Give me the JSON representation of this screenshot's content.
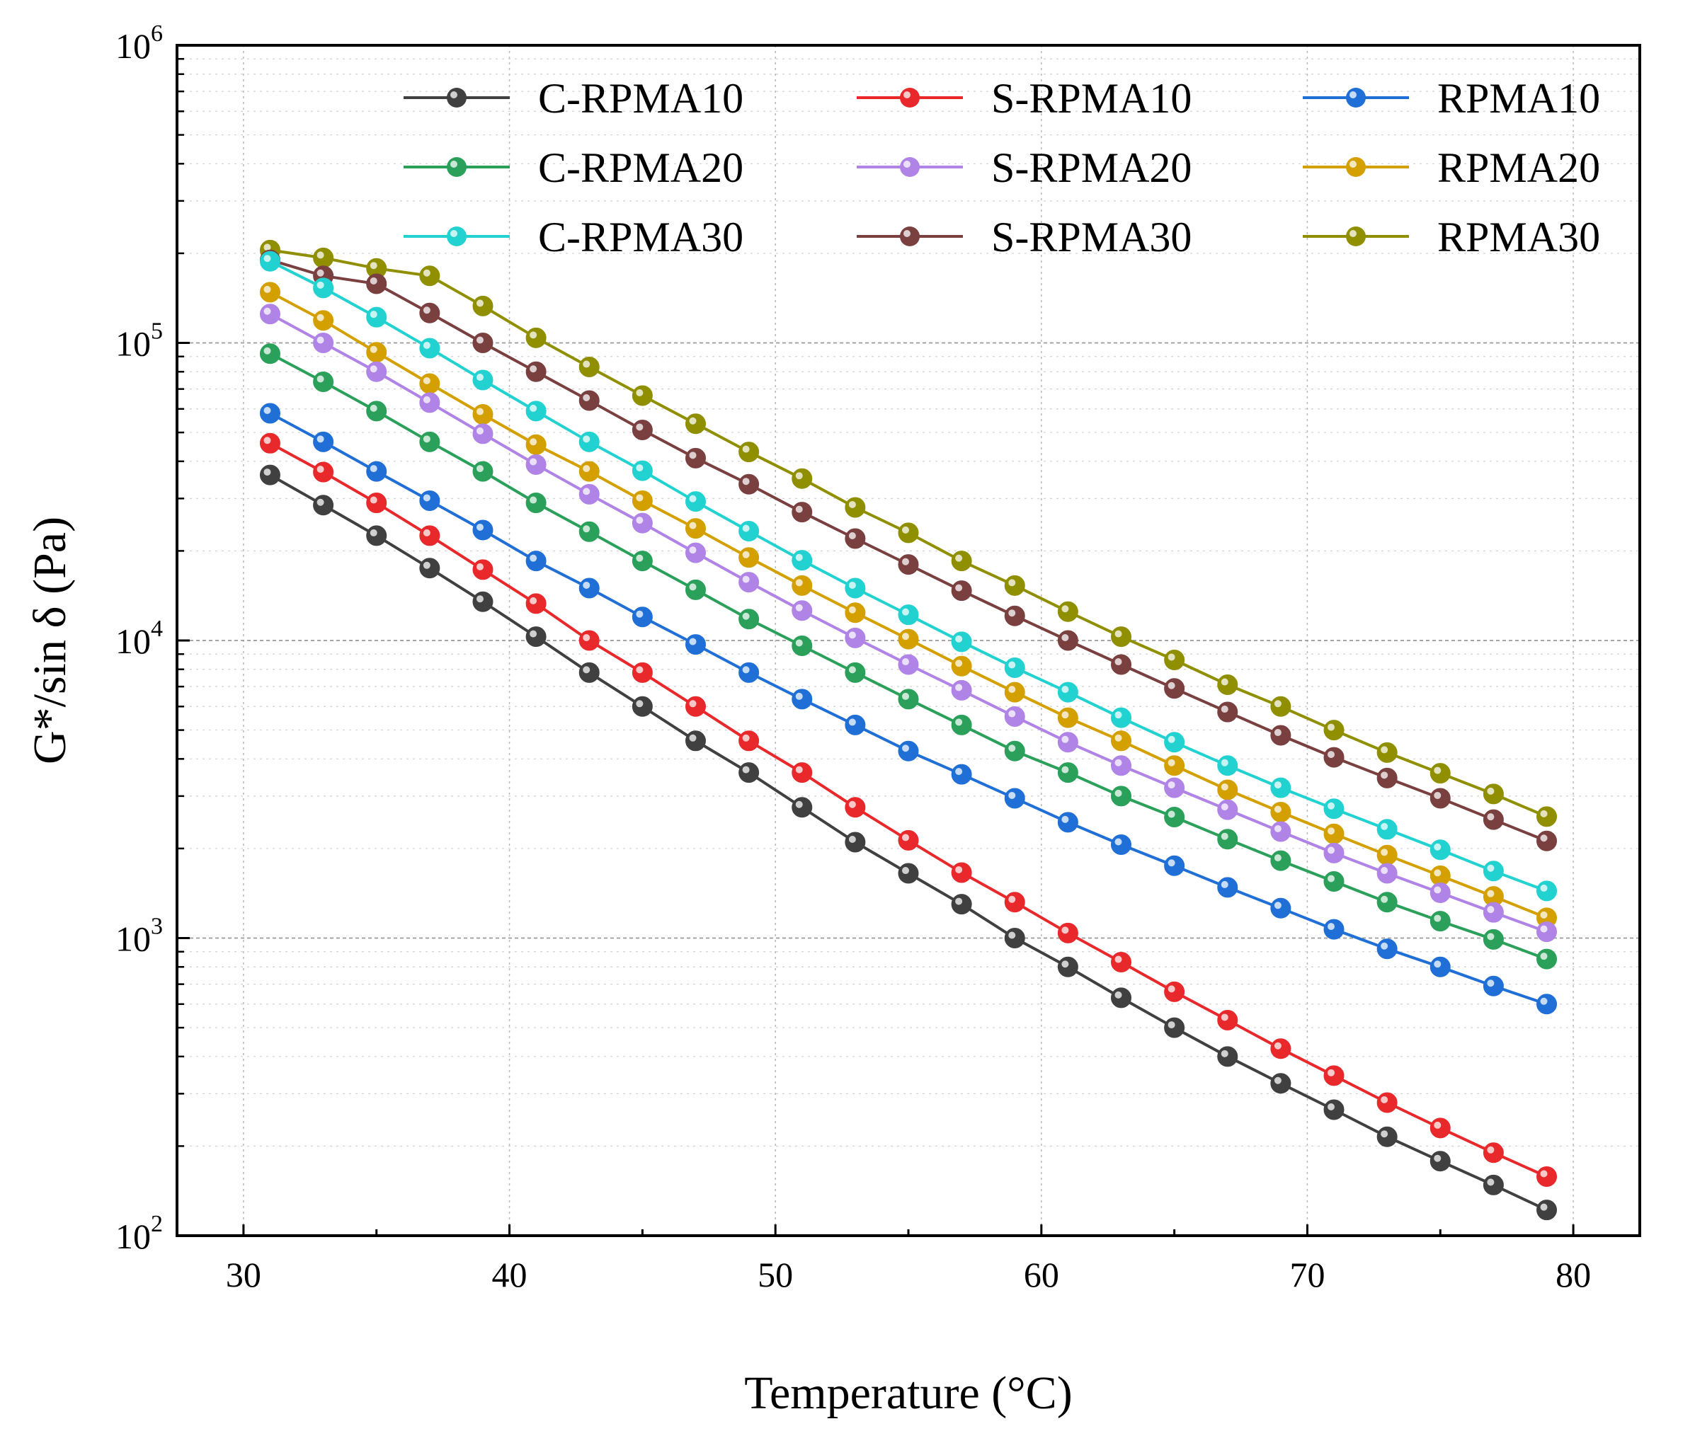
{
  "chart_data": {
    "type": "line",
    "xlabel": "Temperature (°C)",
    "ylabel": "G*/sin δ (Pa)",
    "xlim": [
      27.5,
      82.5
    ],
    "ylim": [
      100,
      1000000
    ],
    "yscale": "log",
    "grid": true,
    "legend_position": "top-right",
    "x_ticks": [
      "30",
      "40",
      "50",
      "60",
      "70",
      "80"
    ],
    "y_ticks": [
      {
        "base": "10",
        "exp": "2"
      },
      {
        "base": "10",
        "exp": "3"
      },
      {
        "base": "10",
        "exp": "4"
      },
      {
        "base": "10",
        "exp": "5"
      },
      {
        "base": "10",
        "exp": "6"
      }
    ],
    "x": [
      31,
      33,
      35,
      37,
      39,
      41,
      43,
      45,
      47,
      49,
      51,
      53,
      55,
      57,
      59,
      61,
      63,
      65,
      67,
      69,
      71,
      73,
      75,
      77,
      79
    ],
    "series": [
      {
        "name": "C-RPMA10",
        "color": "#404040",
        "values": [
          36000,
          28500,
          22500,
          17500,
          13500,
          10300,
          7800,
          6000,
          4600,
          3600,
          2750,
          2100,
          1650,
          1300,
          1000,
          800,
          630,
          500,
          400,
          325,
          265,
          215,
          178,
          148,
          122
        ]
      },
      {
        "name": "S-RPMA10",
        "color": "#e8282b",
        "values": [
          46000,
          36800,
          29000,
          22500,
          17300,
          13300,
          10000,
          7800,
          6000,
          4600,
          3600,
          2750,
          2130,
          1660,
          1320,
          1040,
          830,
          660,
          530,
          425,
          345,
          280,
          230,
          190,
          158
        ]
      },
      {
        "name": "RPMA10",
        "color": "#1f6fd6",
        "values": [
          58000,
          46500,
          37000,
          29500,
          23500,
          18500,
          15000,
          12000,
          9700,
          7800,
          6350,
          5200,
          4250,
          3550,
          2950,
          2450,
          2060,
          1750,
          1480,
          1260,
          1070,
          920,
          800,
          690,
          600
        ]
      },
      {
        "name": "C-RPMA20",
        "color": "#2aa05a",
        "values": [
          92000,
          74000,
          59000,
          46500,
          37000,
          29000,
          23200,
          18500,
          14800,
          11800,
          9600,
          7800,
          6350,
          5200,
          4250,
          3600,
          3000,
          2550,
          2150,
          1820,
          1550,
          1320,
          1140,
          990,
          850
        ]
      },
      {
        "name": "S-RPMA20",
        "color": "#b083e6",
        "values": [
          125000,
          100000,
          80000,
          63000,
          49500,
          39000,
          31000,
          24800,
          19700,
          15700,
          12600,
          10200,
          8300,
          6800,
          5550,
          4550,
          3800,
          3200,
          2700,
          2280,
          1930,
          1650,
          1420,
          1220,
          1050
        ]
      },
      {
        "name": "RPMA20",
        "color": "#d4a000",
        "values": [
          148000,
          119000,
          93000,
          73000,
          57500,
          45500,
          37000,
          29500,
          23800,
          19000,
          15300,
          12400,
          10100,
          8200,
          6700,
          5500,
          4600,
          3800,
          3150,
          2650,
          2240,
          1900,
          1620,
          1380,
          1170
        ]
      },
      {
        "name": "C-RPMA30",
        "color": "#22d2d0",
        "values": [
          188000,
          153000,
          122000,
          96000,
          75000,
          59000,
          46500,
          37200,
          29300,
          23300,
          18600,
          15000,
          12200,
          9900,
          8100,
          6700,
          5500,
          4550,
          3800,
          3200,
          2720,
          2320,
          1980,
          1680,
          1440
        ]
      },
      {
        "name": "S-RPMA30",
        "color": "#7a4040",
        "values": [
          190000,
          168000,
          158000,
          126000,
          100000,
          80000,
          64000,
          51000,
          41000,
          33500,
          27000,
          22000,
          18000,
          14700,
          12100,
          10000,
          8300,
          6900,
          5750,
          4800,
          4050,
          3450,
          2950,
          2500,
          2120
        ]
      },
      {
        "name": "RPMA30",
        "color": "#8f8f00",
        "values": [
          205000,
          193000,
          178000,
          168000,
          133000,
          104000,
          83000,
          66500,
          53500,
          43000,
          35000,
          28000,
          23000,
          18500,
          15300,
          12500,
          10300,
          8600,
          7100,
          6000,
          5000,
          4200,
          3580,
          3050,
          2560
        ]
      }
    ]
  }
}
